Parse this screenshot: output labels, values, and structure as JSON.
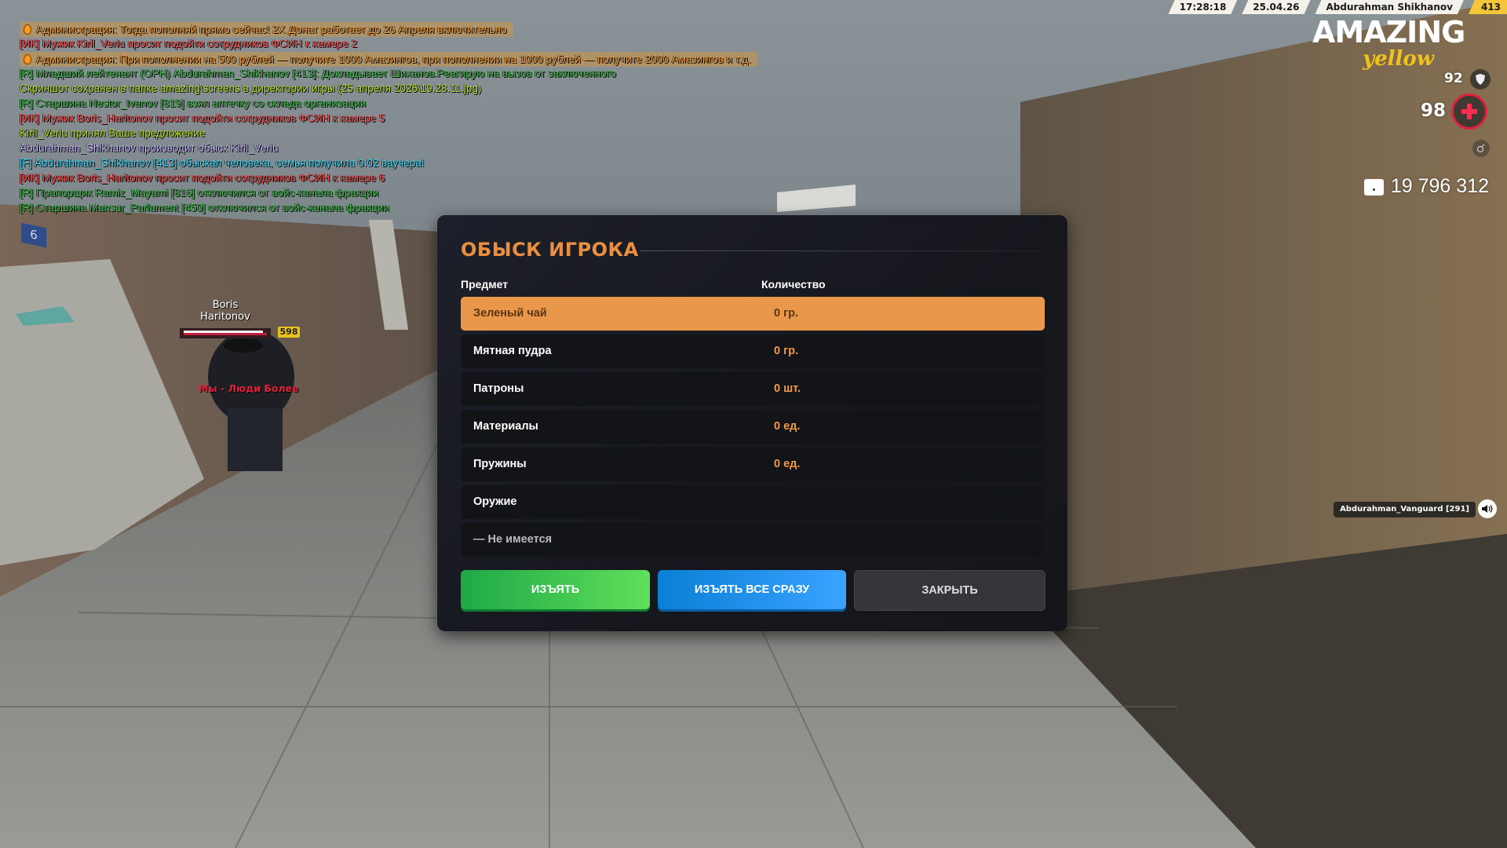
{
  "chat": [
    {
      "type": "admin",
      "color": "#f4a13a",
      "text": "Администрация: Тогда пополняй прямо сейчас! 2X Донат работает до 26 Апреля включительно"
    },
    {
      "type": "normal",
      "color": "#ff5a5a",
      "text": "[ИК] Мужик Kiril_Veriu просит подойти сотрудников ФСИН к камере 2"
    },
    {
      "type": "admin",
      "color": "#f4a13a",
      "text": "Администрация: При пополнении на 500 рублей — получите 1000 Амазингов, при пополнении на 1000 рублей — получите 2000 Амазингов и т.д."
    },
    {
      "type": "normal",
      "color": "#3fbf4a",
      "text": "[R] Младший лейтенант (ОРН) Abdurahman_Shikhanov [413]: Докладывает Шиханов.Реагирую на вызов от заключенного"
    },
    {
      "type": "normal",
      "color": "#b8e62a",
      "text": "Скриншот сохранен в папке amazing\\screens в директории игры (25 апреля 2026\\19.28.11.jpg)"
    },
    {
      "type": "normal",
      "color": "#3fbf4a",
      "text": "[R] Старшина Nestor_Ivanov [819] взял аптечку со склада организации"
    },
    {
      "type": "normal",
      "color": "#ff5a5a",
      "text": "[ИК] Мужик Boris_Haritonov просит подойти сотрудников ФСИН к камере 5"
    },
    {
      "type": "normal",
      "color": "#b8e62a",
      "text": "Kiril_Veriu принял Ваше предложение"
    },
    {
      "type": "normal",
      "color": "#c9b9ff",
      "text": "Abdurahman_Shikhanov производит обыск Kiril_Veriu"
    },
    {
      "type": "normal",
      "color": "#3fe0ff",
      "text": "[F] Abdurahman_Shikhanov [413] обыскал человека, семья получила 0.02 ваучера!"
    },
    {
      "type": "normal",
      "color": "#ff4a4a",
      "text": "[ИК] Мужик Boris_Haritonov просит подойти сотрудников ФСИН к камере 6"
    },
    {
      "type": "normal",
      "color": "#3fbf4a",
      "text": "[R] Прапорщик Ramiz_Mayami [816] отключился от войс-канала фракции"
    },
    {
      "type": "normal",
      "color": "#3fbf4a",
      "text": "[R] Старшина Mansur_Parlament [450] отключился от войс-канала фракции"
    }
  ],
  "topbar": {
    "time": "17:28:18",
    "date": "25.04.26",
    "player_name": "Abdurahman Shikhanov",
    "player_id": "413"
  },
  "logo": {
    "main": "AMAZING",
    "sub": "yellow"
  },
  "hud": {
    "armor": "92",
    "health": "98",
    "money": "19 796 312",
    "armor_icon": "shield-icon",
    "health_icon": "plus-icon",
    "money_icon": "wallet-icon"
  },
  "scene": {
    "door_number": "6",
    "npc": {
      "name_line1": "Boris",
      "name_line2": "Haritonov",
      "level": "598",
      "health_fraction": 0.95,
      "tag": "Мы - Люди Более"
    },
    "voice": {
      "label": "Abdurahman_Vanguard [291]",
      "icon": "speaker-icon"
    }
  },
  "dialog": {
    "title": "ОБЫСК ИГРОКА",
    "col_item": "Предмет",
    "col_qty": "Количество",
    "rows": [
      {
        "item": "Зеленый чай",
        "qty": "0 гр.",
        "selected": true
      },
      {
        "item": "Мятная пудра",
        "qty": "0 гр."
      },
      {
        "item": "Патроны",
        "qty": "0 шт."
      },
      {
        "item": "Материалы",
        "qty": "0 ед."
      },
      {
        "item": "Пружины",
        "qty": "0 ед."
      },
      {
        "item": "Оружие",
        "qty": ""
      },
      {
        "item": "— Не имеется",
        "qty": ""
      }
    ],
    "btn_take": "ИЗЪЯТЬ",
    "btn_take_all": "ИЗЪЯТЬ ВСЕ СРАЗУ",
    "btn_close": "ЗАКРЫТЬ",
    "accent": "#e98f3f"
  }
}
